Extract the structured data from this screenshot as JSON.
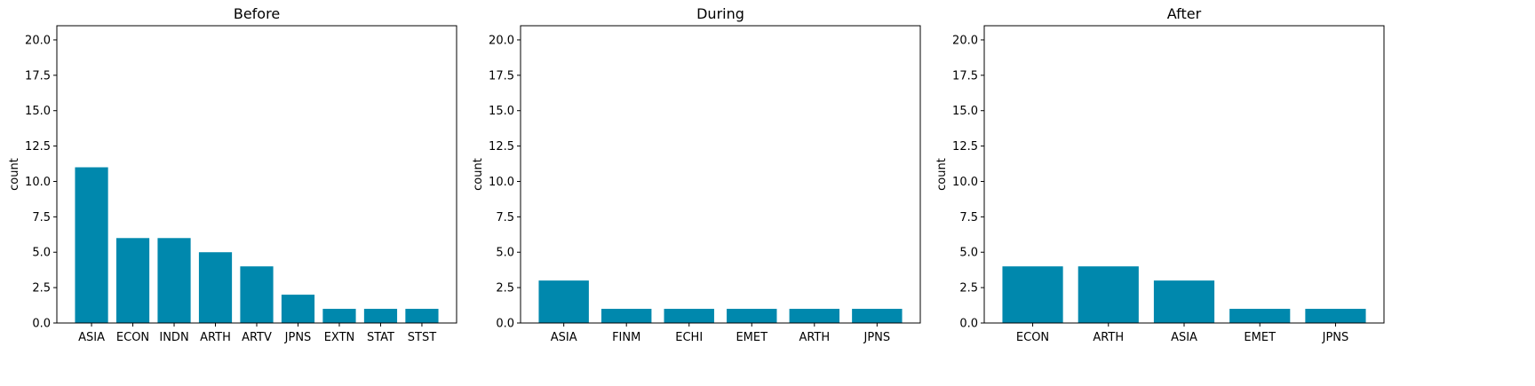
{
  "chart_data": [
    {
      "type": "bar",
      "title": "Before",
      "xlabel": "",
      "ylabel": "count",
      "ylim": [
        0,
        21
      ],
      "yticks": [
        "0.0",
        "2.5",
        "5.0",
        "7.5",
        "10.0",
        "12.5",
        "15.0",
        "17.5",
        "20.0"
      ],
      "categories": [
        "ASIA",
        "ECON",
        "INDN",
        "ARTH",
        "ARTV",
        "JPNS",
        "EXTN",
        "STAT",
        "STST"
      ],
      "values": [
        11,
        6,
        6,
        5,
        4,
        2,
        1,
        1,
        1
      ],
      "color": "#0088ad"
    },
    {
      "type": "bar",
      "title": "During",
      "xlabel": "",
      "ylabel": "count",
      "ylim": [
        0,
        21
      ],
      "yticks": [
        "0.0",
        "2.5",
        "5.0",
        "7.5",
        "10.0",
        "12.5",
        "15.0",
        "17.5",
        "20.0"
      ],
      "categories": [
        "ASIA",
        "FINM",
        "ECHI",
        "EMET",
        "ARTH",
        "JPNS"
      ],
      "values": [
        3,
        1,
        1,
        1,
        1,
        1
      ],
      "color": "#0088ad"
    },
    {
      "type": "bar",
      "title": "After",
      "xlabel": "",
      "ylabel": "count",
      "ylim": [
        0,
        21
      ],
      "yticks": [
        "0.0",
        "2.5",
        "5.0",
        "7.5",
        "10.0",
        "12.5",
        "15.0",
        "17.5",
        "20.0"
      ],
      "categories": [
        "ECON",
        "ARTH",
        "ASIA",
        "EMET",
        "JPNS"
      ],
      "values": [
        4,
        4,
        3,
        1,
        1
      ],
      "color": "#0088ad"
    }
  ]
}
